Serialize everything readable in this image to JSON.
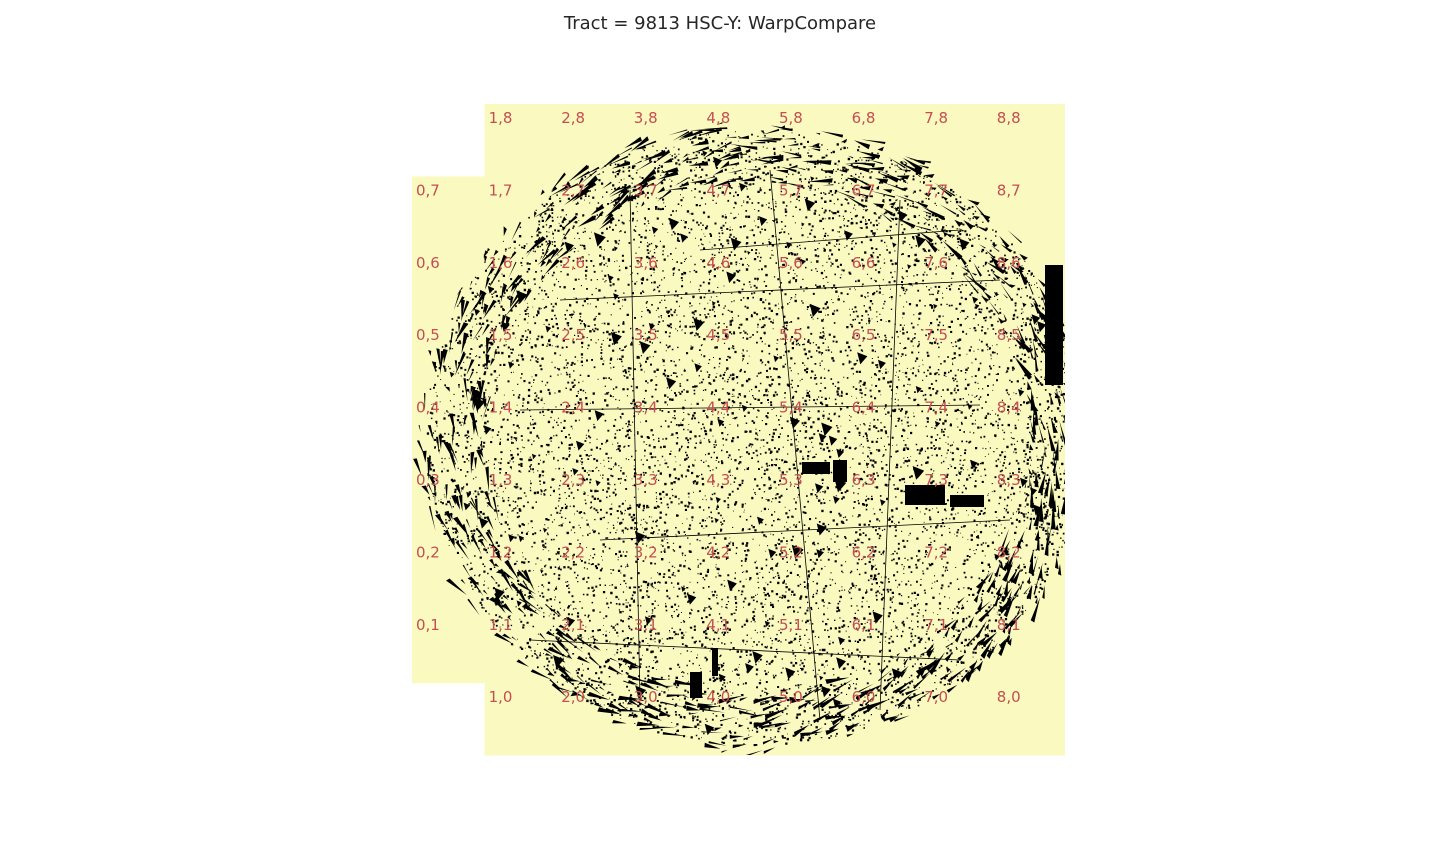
{
  "title": "Tract = 9813 HSC-Y: WarpCompare",
  "colors": {
    "background": "#ffffff",
    "patch_fill": "#fafac0",
    "artifact": "#000000",
    "label": "#c44e52",
    "title": "#262626"
  },
  "patches": {
    "columns": [
      {
        "x": 0,
        "y_min": 1,
        "y_max": 7
      },
      {
        "x": 1,
        "y_min": 0,
        "y_max": 8
      },
      {
        "x": 2,
        "y_min": 0,
        "y_max": 8
      },
      {
        "x": 3,
        "y_min": 0,
        "y_max": 8
      },
      {
        "x": 4,
        "y_min": 0,
        "y_max": 8
      },
      {
        "x": 5,
        "y_min": 0,
        "y_max": 8
      },
      {
        "x": 6,
        "y_min": 0,
        "y_max": 8
      },
      {
        "x": 7,
        "y_min": 0,
        "y_max": 8
      },
      {
        "x": 8,
        "y_min": 0,
        "y_max": 8
      }
    ],
    "labels": [
      "0,1",
      "0,2",
      "0,3",
      "0,4",
      "0,5",
      "0,6",
      "0,7",
      "1,0",
      "1,1",
      "1,2",
      "1,3",
      "1,4",
      "1,5",
      "1,6",
      "1,7",
      "1,8",
      "2,0",
      "2,1",
      "2,2",
      "2,3",
      "2,4",
      "2,5",
      "2,6",
      "2,7",
      "2,8",
      "3,0",
      "3,1",
      "3,2",
      "3,3",
      "3,4",
      "3,5",
      "3,6",
      "3,7",
      "3,8",
      "4,0",
      "4,1",
      "4,2",
      "4,3",
      "4,4",
      "4,5",
      "4,6",
      "4,7",
      "4,8",
      "5,0",
      "5,1",
      "5,2",
      "5,3",
      "5,4",
      "5,5",
      "5,6",
      "5,7",
      "5,8",
      "6,0",
      "6,1",
      "6,2",
      "6,3",
      "6,4",
      "6,5",
      "6,6",
      "6,7",
      "6,8",
      "7,0",
      "7,1",
      "7,2",
      "7,3",
      "7,4",
      "7,5",
      "7,6",
      "7,7",
      "7,8",
      "8,0",
      "8,1",
      "8,2",
      "8,3",
      "8,4",
      "8,5",
      "8,6",
      "8,7",
      "8,8"
    ]
  }
}
